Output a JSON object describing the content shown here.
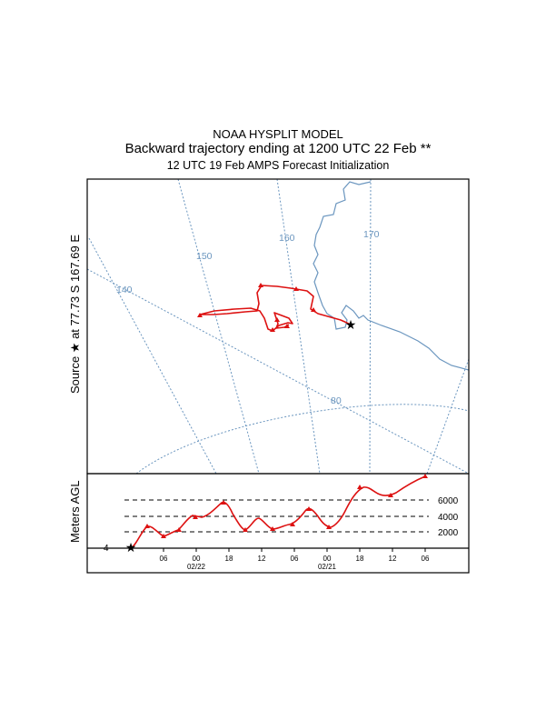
{
  "header": {
    "model": "NOAA HYSPLIT MODEL",
    "subtitle": "Backward trajectory ending at 1200 UTC 22 Feb **",
    "init": "12 UTC 19 Feb    AMPS  Forecast Initialization"
  },
  "map": {
    "source_label": "Source ★ at   77.73 S  167.69 E",
    "meridian_labels": [
      "140",
      "150",
      "160",
      "170"
    ],
    "parallel_label": "80",
    "colors": {
      "grid": "#6b96bf",
      "coast": "#6b96bf",
      "trajectory": "#dd1111"
    }
  },
  "profile": {
    "ylabel": "Meters AGL",
    "level_labels": [
      "6000",
      "4000",
      "2000"
    ],
    "start_label": "4",
    "time_ticks": [
      "06",
      "00",
      "18",
      "12",
      "06",
      "00",
      "18",
      "12",
      "06"
    ],
    "date_labels": [
      "02/22",
      "02/21"
    ]
  }
}
